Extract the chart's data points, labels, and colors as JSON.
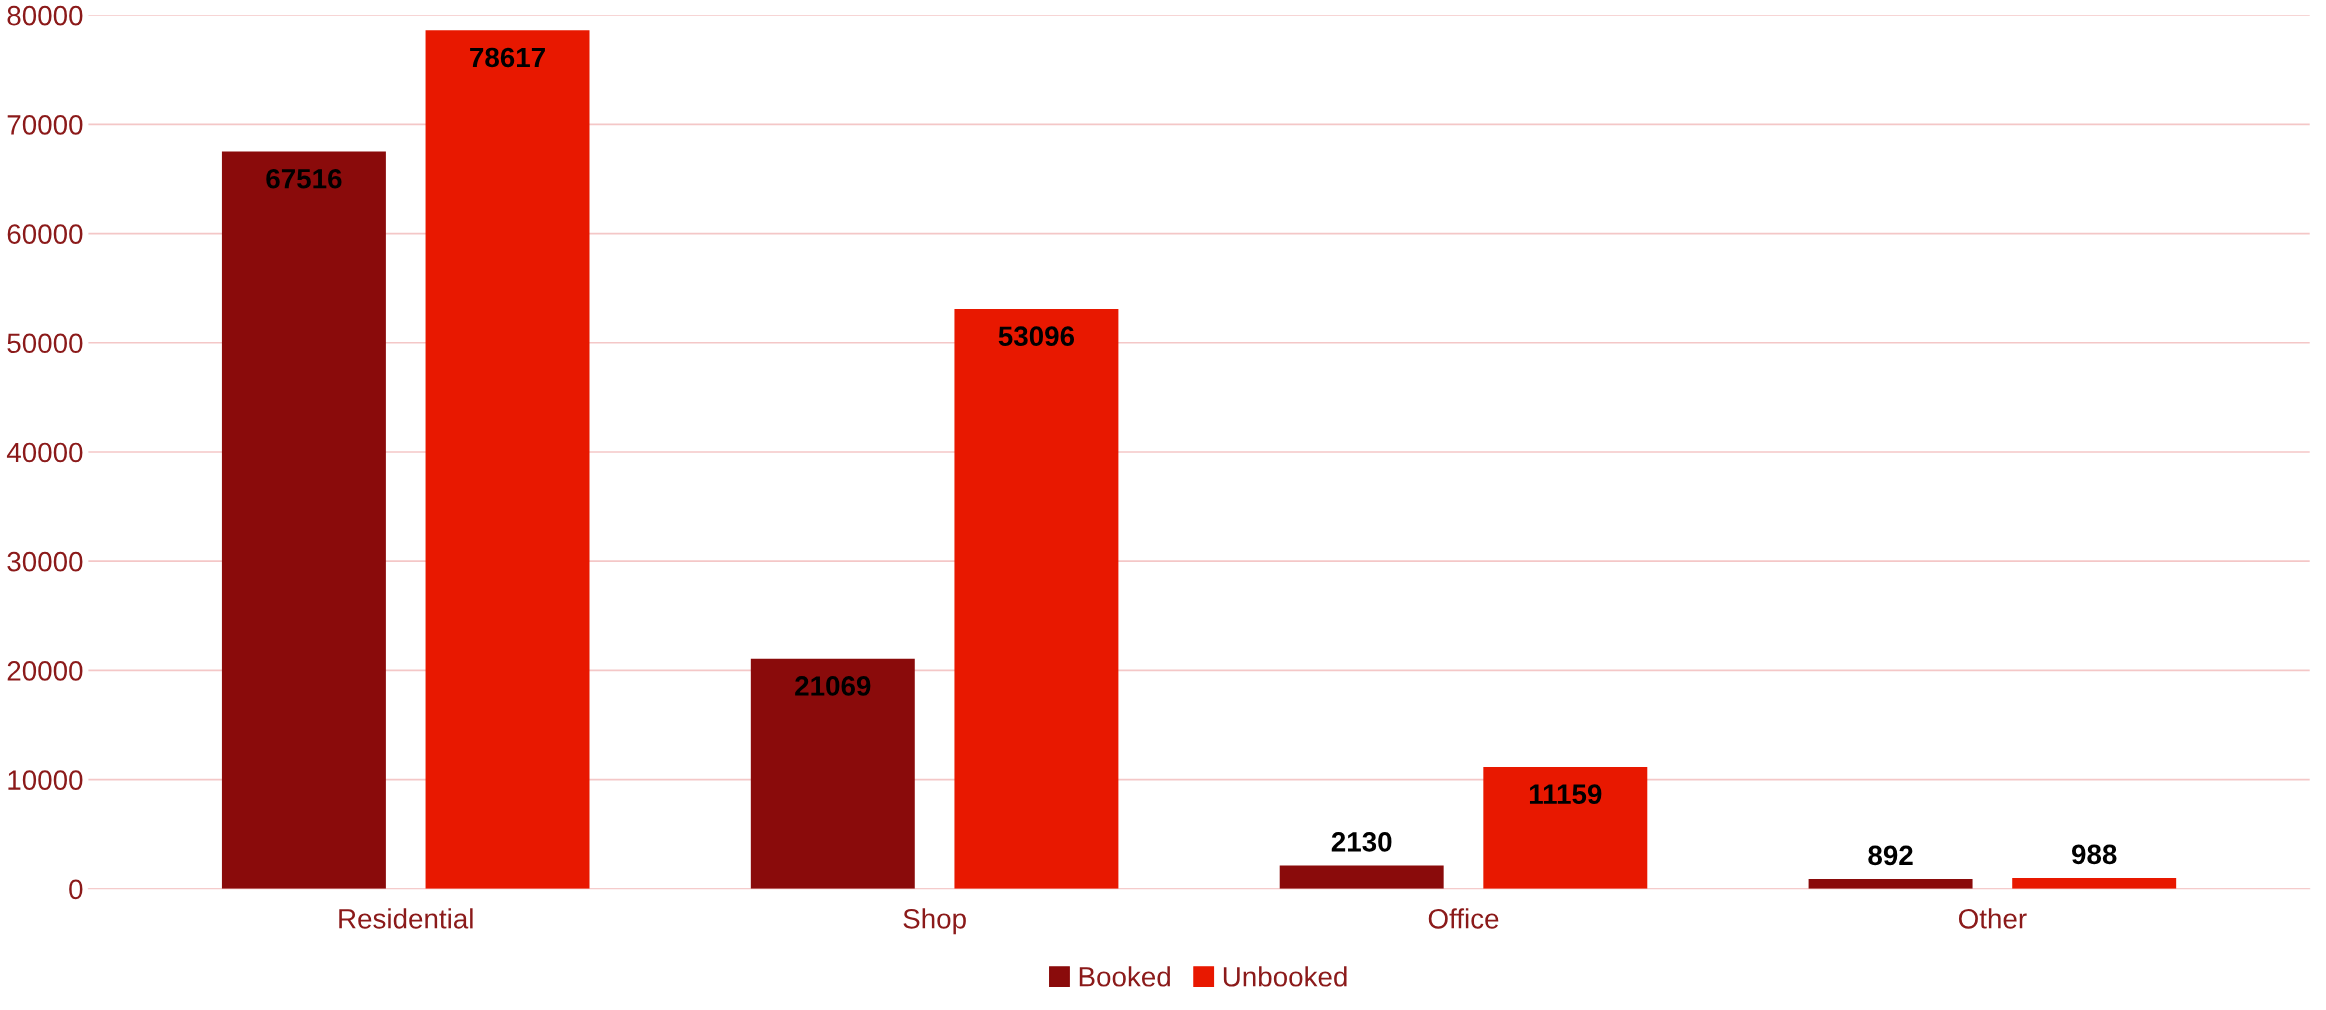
{
  "chart_data": {
    "type": "bar",
    "categories": [
      "Residential",
      "Shop",
      "Office",
      "Other"
    ],
    "series": [
      {
        "name": "Booked",
        "color": "#8a0b0b",
        "values": [
          67516,
          21069,
          2130,
          892
        ]
      },
      {
        "name": "Unbooked",
        "color": "#e81800",
        "values": [
          78617,
          53096,
          11159,
          988
        ]
      }
    ],
    "ylim": [
      0,
      80000
    ],
    "yticks": [
      0,
      10000,
      20000,
      30000,
      40000,
      50000,
      60000,
      70000,
      80000
    ],
    "grid": "y",
    "legend": "bottom",
    "data_labels": true
  }
}
